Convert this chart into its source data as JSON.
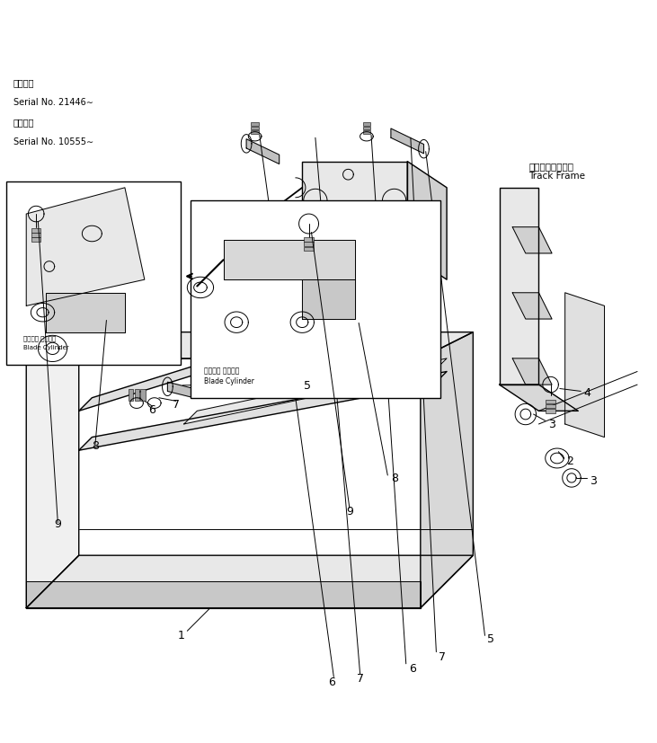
{
  "bg_color": "#ffffff",
  "line_color": "#000000",
  "fig_width": 7.31,
  "fig_height": 8.27,
  "dpi": 100,
  "serial_lines": [
    "通用号機",
    "Serial No. 21446∼",
    "通用号機",
    "Serial No. 10555∼"
  ],
  "track_frame_label": [
    "トラックフレーム",
    "Track Frame"
  ],
  "blade_cylinder_label": [
    "ブレード シリンダ",
    "Blade Cylinder"
  ],
  "blade_cylinder_label2": [
    "ブレード シリンダ",
    "Blade Cylinder"
  ]
}
